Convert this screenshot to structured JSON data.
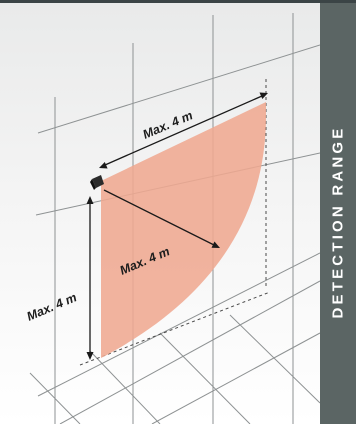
{
  "side_panel": {
    "title": "DETECTION RANGE"
  },
  "diagram": {
    "labels": {
      "top": "Max. 4 m",
      "diagonal": "Max. 4 m",
      "vertical": "Max. 4 m"
    },
    "colors": {
      "detection_zone": "#efa991",
      "side_panel": "#5b6564",
      "grid_line": "#8e9293"
    }
  }
}
